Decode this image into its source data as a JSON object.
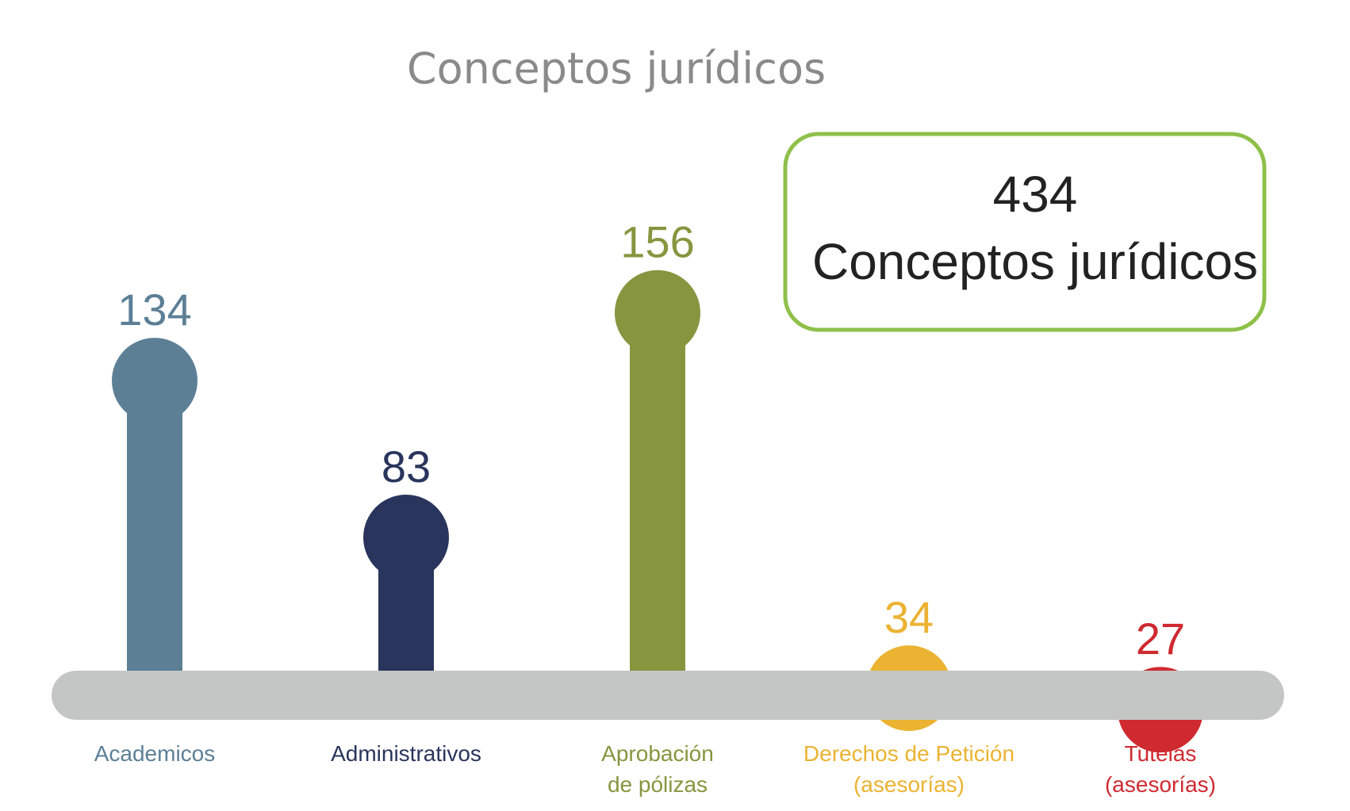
{
  "chart_data": {
    "type": "bar",
    "title": "Conceptos jurídicos",
    "categories": [
      {
        "label": "Academicos",
        "lines": [
          "Academicos"
        ],
        "value": 134,
        "color": "#5c7f96"
      },
      {
        "label": "Administrativos",
        "lines": [
          "Administrativos"
        ],
        "value": 83,
        "color": "#29355c"
      },
      {
        "label": "Aprobación de pólizas",
        "lines": [
          "Aprobación",
          "de pólizas"
        ],
        "value": 156,
        "color": "#87953f"
      },
      {
        "label": "Derechos de Petición (asesorías)",
        "lines": [
          "Derechos de Petición",
          "(asesorías)"
        ],
        "value": 34,
        "color": "#ebb331"
      },
      {
        "label": "Tutelas (asesorías)",
        "lines": [
          "Tutelas",
          "(asesorías)"
        ],
        "value": 27,
        "color": "#cf2a30"
      }
    ],
    "total": {
      "value": "434",
      "label": "Conceptos jurídicos",
      "border_color": "#8fc04a"
    },
    "baseline_color": "#c4c6c5",
    "ylim": [
      0,
      170
    ]
  }
}
